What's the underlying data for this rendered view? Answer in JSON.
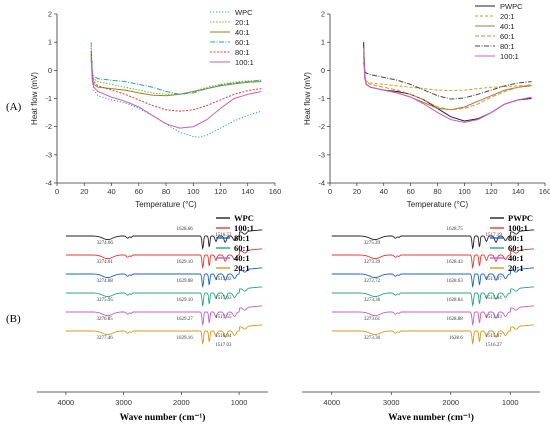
{
  "panels": {
    "a": "(A)",
    "b": "(B)"
  },
  "chart_data": [
    {
      "type": "line",
      "xlabel": "Temperature (°C)",
      "ylabel": "Heat flow (mV)",
      "xlim": [
        0,
        160
      ],
      "ylim": [
        -4,
        2
      ],
      "xticks": [
        0,
        20,
        40,
        60,
        80,
        100,
        120,
        140,
        160
      ],
      "yticks": [
        -4,
        -3,
        -2,
        -1,
        0,
        1,
        2
      ],
      "legend": "top-right",
      "series": [
        {
          "name": "WPC",
          "color": "#1aa0d8",
          "dash": "1.2,1.8",
          "x": [
            25,
            26,
            27,
            30,
            40,
            50,
            60,
            70,
            80,
            90,
            100,
            105,
            110,
            120,
            130,
            140,
            150
          ],
          "y": [
            0.8,
            -0.4,
            -0.7,
            -0.9,
            -1.05,
            -1.15,
            -1.35,
            -1.6,
            -1.9,
            -2.2,
            -2.35,
            -2.38,
            -2.3,
            -2.05,
            -1.8,
            -1.6,
            -1.45
          ]
        },
        {
          "name": "20:1",
          "color": "#7fb043",
          "dash": "1.5,1.5",
          "x": [
            25,
            26,
            27,
            30,
            40,
            50,
            60,
            70,
            80,
            90,
            100,
            110,
            120,
            130,
            140,
            150
          ],
          "y": [
            0.5,
            -0.1,
            -0.3,
            -0.4,
            -0.5,
            -0.6,
            -0.7,
            -0.8,
            -0.85,
            -0.85,
            -0.75,
            -0.6,
            -0.5,
            -0.42,
            -0.38,
            -0.35
          ]
        },
        {
          "name": "40:1",
          "color": "#8a8a22",
          "dash": "",
          "x": [
            25,
            26,
            27,
            30,
            40,
            50,
            60,
            70,
            80,
            90,
            100,
            110,
            120,
            130,
            140,
            150
          ],
          "y": [
            0.6,
            -0.3,
            -0.5,
            -0.6,
            -0.65,
            -0.7,
            -0.8,
            -0.88,
            -0.9,
            -0.85,
            -0.75,
            -0.65,
            -0.55,
            -0.48,
            -0.42,
            -0.4
          ]
        },
        {
          "name": "60:1",
          "color": "#2aa88e",
          "dash": "5,1.5,1,1.5",
          "x": [
            25,
            26,
            27,
            30,
            40,
            50,
            60,
            70,
            80,
            90,
            100,
            110,
            120,
            130,
            140,
            150
          ],
          "y": [
            1.0,
            -0.1,
            -0.2,
            -0.3,
            -0.35,
            -0.4,
            -0.5,
            -0.6,
            -0.75,
            -0.85,
            -0.8,
            -0.65,
            -0.52,
            -0.45,
            -0.4,
            -0.35
          ]
        },
        {
          "name": "80:1",
          "color": "#e8382f",
          "dash": "2,1.5",
          "x": [
            25,
            26,
            27,
            30,
            40,
            50,
            60,
            70,
            80,
            90,
            100,
            110,
            120,
            130,
            140,
            150
          ],
          "y": [
            0.7,
            -0.2,
            -0.4,
            -0.55,
            -0.7,
            -0.85,
            -1.05,
            -1.25,
            -1.4,
            -1.45,
            -1.4,
            -1.25,
            -1.05,
            -0.85,
            -0.72,
            -0.65
          ]
        },
        {
          "name": "100:1",
          "color": "#c85ec8",
          "dash": "",
          "x": [
            25,
            26,
            27,
            30,
            40,
            50,
            60,
            70,
            80,
            90,
            100,
            110,
            120,
            130,
            140,
            150
          ],
          "y": [
            0.4,
            -0.4,
            -0.6,
            -0.75,
            -0.95,
            -1.1,
            -1.3,
            -1.6,
            -1.9,
            -2.05,
            -2.0,
            -1.75,
            -1.35,
            -1.0,
            -0.85,
            -0.75
          ]
        }
      ]
    },
    {
      "type": "line",
      "xlabel": "Temperature (°C)",
      "ylabel": "Heat flow (mV)",
      "xlim": [
        0,
        160
      ],
      "ylim": [
        -4,
        2
      ],
      "xticks": [
        0,
        20,
        40,
        60,
        80,
        100,
        120,
        140,
        160
      ],
      "yticks": [
        -4,
        -3,
        -2,
        -1,
        0,
        1,
        2
      ],
      "legend": "top-right",
      "series": [
        {
          "name": "PWPC",
          "color": "#222222",
          "dash": "",
          "x": [
            25,
            26,
            27,
            30,
            40,
            50,
            60,
            70,
            80,
            90,
            100,
            110,
            120,
            130,
            140,
            150
          ],
          "y": [
            1.0,
            -0.2,
            -0.5,
            -0.6,
            -0.7,
            -0.75,
            -0.85,
            -1.05,
            -1.35,
            -1.65,
            -1.8,
            -1.72,
            -1.5,
            -1.2,
            -1.05,
            -1.0
          ]
        },
        {
          "name": "20:1",
          "color": "#d89a1e",
          "dash": "3,2",
          "x": [
            25,
            26,
            27,
            30,
            40,
            50,
            60,
            70,
            80,
            90,
            100,
            110,
            120,
            130,
            140,
            150
          ],
          "y": [
            0.7,
            -0.3,
            -0.4,
            -0.45,
            -0.5,
            -0.55,
            -0.6,
            -0.65,
            -0.7,
            -0.72,
            -0.7,
            -0.65,
            -0.6,
            -0.58,
            -0.55,
            -0.55
          ]
        },
        {
          "name": "40:1",
          "color": "#a07850",
          "dash": "",
          "x": [
            25,
            26,
            27,
            30,
            40,
            50,
            60,
            70,
            80,
            90,
            100,
            110,
            120,
            130,
            140,
            150
          ],
          "y": [
            0.6,
            -0.3,
            -0.5,
            -0.6,
            -0.7,
            -0.8,
            -0.95,
            -1.15,
            -1.35,
            -1.4,
            -1.3,
            -1.1,
            -0.9,
            -0.7,
            -0.6,
            -0.55
          ]
        },
        {
          "name": "60:1",
          "color": "#e08a2e",
          "dash": "4,2",
          "x": [
            25,
            26,
            27,
            30,
            40,
            50,
            60,
            70,
            80,
            90,
            100,
            110,
            120,
            130,
            140,
            150
          ],
          "y": [
            0.8,
            -0.2,
            -0.4,
            -0.5,
            -0.6,
            -0.7,
            -0.85,
            -1.05,
            -1.3,
            -1.4,
            -1.35,
            -1.2,
            -0.95,
            -0.75,
            -0.6,
            -0.5
          ]
        },
        {
          "name": "80:1",
          "color": "#444444",
          "dash": "5,1.5,1,1.5",
          "x": [
            25,
            26,
            27,
            30,
            40,
            50,
            60,
            70,
            80,
            90,
            100,
            110,
            120,
            130,
            140,
            150
          ],
          "y": [
            0.3,
            -0.05,
            -0.1,
            -0.15,
            -0.25,
            -0.35,
            -0.5,
            -0.7,
            -0.9,
            -1.02,
            -0.98,
            -0.85,
            -0.7,
            -0.55,
            -0.45,
            -0.4
          ]
        },
        {
          "name": "100:1",
          "color": "#c85ec8",
          "dash": "",
          "x": [
            25,
            26,
            27,
            30,
            40,
            50,
            60,
            70,
            80,
            90,
            100,
            110,
            120,
            130,
            140,
            150
          ],
          "y": [
            0.5,
            -0.3,
            -0.5,
            -0.6,
            -0.7,
            -0.8,
            -0.95,
            -1.2,
            -1.5,
            -1.75,
            -1.85,
            -1.75,
            -1.5,
            -1.2,
            -1.05,
            -0.95
          ]
        }
      ]
    },
    {
      "type": "line",
      "xlabel": "Wave number (cm⁻¹)",
      "xlim": [
        4500,
        500
      ],
      "xticks": [
        4000,
        3000,
        2000,
        1000
      ],
      "legend": "right",
      "series": [
        {
          "name": "WPC",
          "color": "#222222",
          "peaks": [
            "3274.66",
            "1628.66",
            "1516.53"
          ]
        },
        {
          "name": "100:1",
          "color": "#e8382f",
          "peaks": [
            "3274.61",
            "1629.10"
          ]
        },
        {
          "name": "80:1",
          "color": "#1c63c8",
          "peaks": [
            "3274.88",
            "1629.08",
            "1517.02"
          ]
        },
        {
          "name": "60:1",
          "color": "#27a878",
          "peaks": [
            "3275.95",
            "1629.10",
            "1517.63"
          ]
        },
        {
          "name": "40:1",
          "color": "#c85ec8",
          "peaks": [
            "3276.85",
            "1629.27",
            "1517.55"
          ]
        },
        {
          "name": "20:1",
          "color": "#d89a1e",
          "peaks": [
            "3277.46",
            "1629.16",
            "1516.94",
            "1517.03"
          ]
        }
      ]
    },
    {
      "type": "line",
      "xlabel": "Wave number (cm⁻¹)",
      "xlim": [
        4500,
        500
      ],
      "xticks": [
        4000,
        3000,
        2000,
        1000
      ],
      "legend": "right",
      "series": [
        {
          "name": "PWPC",
          "color": "#222222",
          "peaks": [
            "3275.39",
            "1628.75",
            "1517.19"
          ]
        },
        {
          "name": "100:1",
          "color": "#e8382f",
          "peaks": [
            "3273.39",
            "1628.43"
          ]
        },
        {
          "name": "80:1",
          "color": "#1c63c8",
          "peaks": [
            "3272.72",
            "1628.63",
            "1517.07"
          ]
        },
        {
          "name": "60:1",
          "color": "#27a878",
          "peaks": [
            "3273.36",
            "1628.84",
            "1515.84"
          ]
        },
        {
          "name": "40:1",
          "color": "#c85ec8",
          "peaks": [
            "3273.61",
            "1628.88",
            "1513.93"
          ]
        },
        {
          "name": "20:1",
          "color": "#d89a1e",
          "peaks": [
            "3273.36",
            "1628.6",
            "1515.87",
            "1516.27"
          ]
        }
      ]
    }
  ]
}
